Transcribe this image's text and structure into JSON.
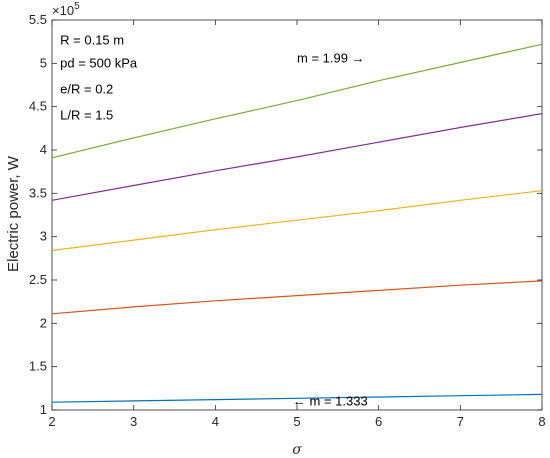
{
  "chart_data": {
    "type": "line",
    "xlabel": "σ",
    "ylabel": "Electric power, W",
    "xlim": [
      2,
      8
    ],
    "ylim": [
      1.0,
      5.5
    ],
    "y_exponent_label": "×10",
    "y_exponent_power": "5",
    "x_ticks": [
      2,
      3,
      4,
      5,
      6,
      7,
      8
    ],
    "x_tick_labels": [
      "2",
      "3",
      "4",
      "5",
      "6",
      "7",
      "8"
    ],
    "y_ticks": [
      1,
      1.5,
      2,
      2.5,
      3,
      3.5,
      4,
      4.5,
      5,
      5.5
    ],
    "y_tick_labels": [
      "1",
      "1.5",
      "2",
      "2.5",
      "3",
      "3.5",
      "4",
      "4.5",
      "5",
      "5.5"
    ],
    "grid": false,
    "series": [
      {
        "color": "#0072BD",
        "x": [
          2,
          3,
          4,
          5,
          6,
          7,
          8
        ],
        "y": [
          1.09,
          1.105,
          1.12,
          1.135,
          1.15,
          1.165,
          1.18
        ]
      },
      {
        "color": "#D95319",
        "x": [
          2,
          3,
          4,
          5,
          6,
          7,
          8
        ],
        "y": [
          2.11,
          2.19,
          2.26,
          2.32,
          2.38,
          2.44,
          2.49
        ]
      },
      {
        "color": "#EDB120",
        "x": [
          2,
          3,
          4,
          5,
          6,
          7,
          8
        ],
        "y": [
          2.84,
          2.96,
          3.08,
          3.19,
          3.3,
          3.42,
          3.53
        ]
      },
      {
        "color": "#7E2F8E",
        "x": [
          2,
          3,
          4,
          5,
          6,
          7,
          8
        ],
        "y": [
          3.42,
          3.59,
          3.76,
          3.92,
          4.09,
          4.26,
          4.42
        ]
      },
      {
        "color": "#77AC30",
        "x": [
          2,
          3,
          4,
          5,
          6,
          7,
          8
        ],
        "y": [
          3.91,
          4.14,
          4.36,
          4.57,
          4.8,
          5.01,
          5.22
        ]
      }
    ],
    "annotations": [
      {
        "text": "R = 0.15 m",
        "x": 2.1,
        "y": 5.22
      },
      {
        "text": "pd = 500 kPa",
        "x": 2.1,
        "y": 4.95
      },
      {
        "text": "e/R = 0.2",
        "x": 2.1,
        "y": 4.65
      },
      {
        "text": "L/R = 1.5",
        "x": 2.1,
        "y": 4.35
      },
      {
        "text": "m = 1.99 →",
        "x": 5.0,
        "y": 5.01
      },
      {
        "text": "← m = 1.333",
        "x": 4.95,
        "y": 1.05
      }
    ]
  }
}
